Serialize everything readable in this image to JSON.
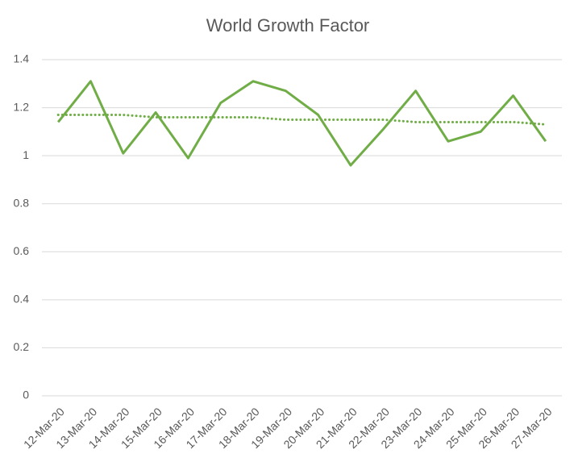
{
  "chart_data": {
    "type": "line",
    "title": "World Growth Factor",
    "categories": [
      "12-Mar-20",
      "13-Mar-20",
      "14-Mar-20",
      "15-Mar-20",
      "16-Mar-20",
      "17-Mar-20",
      "18-Mar-20",
      "19-Mar-20",
      "20-Mar-20",
      "21-Mar-20",
      "22-Mar-20",
      "23-Mar-20",
      "24-Mar-20",
      "25-Mar-20",
      "26-Mar-20",
      "27-Mar-20"
    ],
    "series": [
      {
        "color": "#70ad47",
        "style": "solid",
        "values": [
          1.14,
          1.31,
          1.01,
          1.18,
          0.99,
          1.22,
          1.31,
          1.27,
          1.17,
          0.96,
          1.11,
          1.27,
          1.06,
          1.1,
          1.25,
          1.06
        ]
      },
      {
        "color": "#70ad47",
        "style": "dotted",
        "values": [
          1.17,
          1.17,
          1.17,
          1.16,
          1.16,
          1.16,
          1.16,
          1.15,
          1.15,
          1.15,
          1.15,
          1.14,
          1.14,
          1.14,
          1.14,
          1.13
        ]
      }
    ],
    "ylim": [
      0,
      1.4
    ],
    "yticks": [
      0,
      0.2,
      0.4,
      0.6,
      0.8,
      1,
      1.2,
      1.4
    ],
    "grid": true
  }
}
